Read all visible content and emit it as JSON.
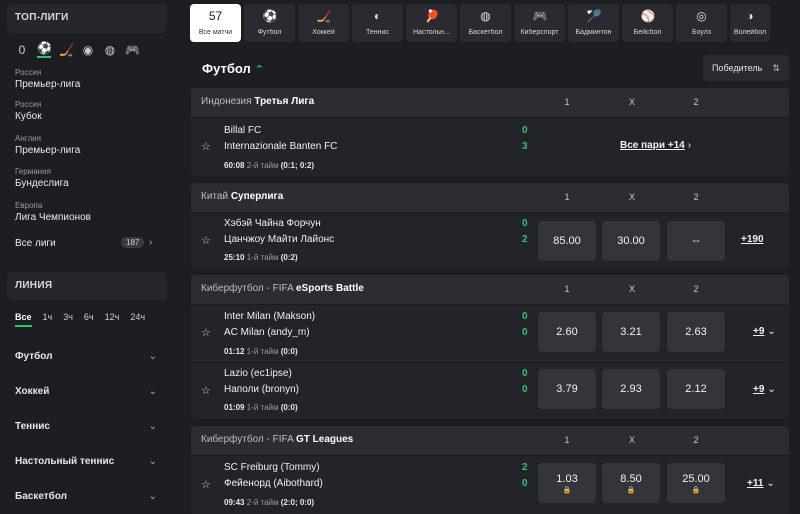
{
  "sidebar": {
    "top_title": "ТОП-ЛИГИ",
    "sport_icons": [
      {
        "icon": "zero-count",
        "label": "0"
      },
      {
        "icon": "football-icon",
        "label": "⚽"
      },
      {
        "icon": "hockey-icon",
        "label": "🏒"
      },
      {
        "icon": "tennis-icon",
        "label": "◉"
      },
      {
        "icon": "basketball-icon",
        "label": "◍"
      },
      {
        "icon": "gamepad-icon",
        "label": "🎮"
      }
    ],
    "leagues": [
      {
        "country": "Россия",
        "name": "Премьер-лига"
      },
      {
        "country": "Россия",
        "name": "Кубок"
      },
      {
        "country": "Англия",
        "name": "Премьер-лига"
      },
      {
        "country": "Германия",
        "name": "Бундеслига"
      },
      {
        "country": "Европа",
        "name": "Лига Чемпионов"
      }
    ],
    "all_leagues": {
      "label": "Все лиги",
      "count": "187"
    },
    "line_title": "ЛИНИЯ",
    "time_tabs": [
      "Все",
      "1ч",
      "3ч",
      "6ч",
      "12ч",
      "24ч"
    ],
    "line_sports": [
      "Футбол",
      "Хоккей",
      "Теннис",
      "Настольный теннис",
      "Баскетбол"
    ]
  },
  "sportbar": {
    "all": {
      "count": "57",
      "label": "Все матчи"
    },
    "tabs": [
      {
        "icon": "football-icon",
        "glyph": "⚽",
        "label": "Футбол"
      },
      {
        "icon": "hockey-icon",
        "glyph": "🏒",
        "label": "Хоккей"
      },
      {
        "icon": "tennis-icon",
        "glyph": "◐",
        "label": "Теннис"
      },
      {
        "icon": "table-tennis-icon",
        "glyph": "🏓",
        "label": "Настольн..."
      },
      {
        "icon": "basketball-icon",
        "glyph": "◍",
        "label": "Баскетбол"
      },
      {
        "icon": "esports-icon",
        "glyph": "🎮",
        "label": "Киберспорт"
      },
      {
        "icon": "badminton-icon",
        "glyph": "🏸",
        "label": "Бадминтон"
      },
      {
        "icon": "baseball-icon",
        "glyph": "⚾",
        "label": "Бейсбол"
      },
      {
        "icon": "bowls-icon",
        "glyph": "◎",
        "label": "Боулз"
      },
      {
        "icon": "volleyball-icon",
        "glyph": "◑",
        "label": "Волейбол"
      }
    ]
  },
  "main": {
    "title": "Футбол",
    "winner_select": "Победитель",
    "blocks": [
      {
        "country": "Индонезия",
        "league": "Третья Лига",
        "cols": [
          "1",
          "X",
          "2"
        ],
        "matches": [
          {
            "team1": "Billal FC",
            "team2": "Internazionale Banten FC",
            "score1": "0",
            "score2": "3",
            "clock": "60:08",
            "period": "2-й тайм",
            "detail": "(0:1; 0:2)",
            "all_pairs": "Все пари +14"
          }
        ]
      },
      {
        "country": "Китай",
        "league": "Суперлига",
        "cols": [
          "1",
          "X",
          "2"
        ],
        "matches": [
          {
            "team1": "Хэбэй Чайна Форчун",
            "team2": "Цанчжоу Майти Лайонс",
            "score1": "0",
            "score2": "2",
            "clock": "25:10",
            "period": "1-й тайм",
            "detail": "(0:2)",
            "odds": [
              "85.00",
              "30.00",
              "--"
            ],
            "more": "+190"
          }
        ]
      },
      {
        "country": "Киберфутбол - FIFA",
        "league": "eSports Battle",
        "cols": [
          "1",
          "X",
          "2"
        ],
        "matches": [
          {
            "team1": "Inter Milan (Makson)",
            "team2": "AC Milan (andy_m)",
            "score1": "0",
            "score2": "0",
            "clock": "01:12",
            "period": "1-й тайм",
            "detail": "(0:0)",
            "odds": [
              "2.60",
              "3.21",
              "2.63"
            ],
            "more": "+9"
          },
          {
            "team1": "Lazio (ec1ipse)",
            "team2": "Наполи (bronyn)",
            "score1": "0",
            "score2": "0",
            "clock": "01:09",
            "period": "1-й тайм",
            "detail": "(0:0)",
            "odds": [
              "3.79",
              "2.93",
              "2.12"
            ],
            "more": "+9"
          }
        ]
      },
      {
        "country": "Киберфутбол - FIFA",
        "league": "GT Leagues",
        "cols": [
          "1",
          "X",
          "2"
        ],
        "matches": [
          {
            "team1": "SC Freiburg (Tommy)",
            "team2": "Фейенорд (Aibothard)",
            "score1": "2",
            "score2": "0",
            "clock": "09:43",
            "period": "2-й тайм",
            "detail": "(2:0; 0:0)",
            "odds": [
              "1.03",
              "8.50",
              "25.00"
            ],
            "locked": true,
            "more": "+11"
          }
        ]
      }
    ]
  }
}
